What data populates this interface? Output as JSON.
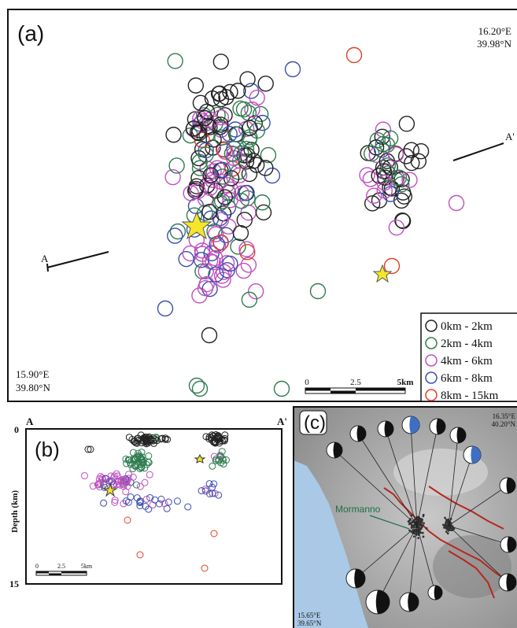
{
  "panel_a": {
    "label": "(a)",
    "ne_lon": "16.20°E",
    "ne_lat": "39.98°N",
    "sw_lon": "15.90°E",
    "sw_lat": "39.80°N",
    "section_start": "A",
    "section_end": "A'",
    "legend": [
      {
        "label": "0km  -  2km",
        "color": "#222222"
      },
      {
        "label": "2km  -  4km",
        "color": "#2e7d4f"
      },
      {
        "label": "4km  -  6km",
        "color": "#c04fc0"
      },
      {
        "label": "6km  -  8km",
        "color": "#3b4fb0"
      },
      {
        "label": "8km  -  15km",
        "color": "#e0402a"
      }
    ],
    "scale_bar": [
      "0",
      "2.5",
      "5km"
    ]
  },
  "panel_b": {
    "label": "(b)",
    "section_start": "A",
    "section_end": "A'",
    "y_axis_label": "Depth (km)",
    "y_top": "0",
    "y_bottom": "15",
    "scale_bar": [
      "0",
      "2.5",
      "5km"
    ]
  },
  "panel_c": {
    "label": "(c)",
    "ne_lon": "16.35°E",
    "ne_lat": "40.20°N",
    "sw_lon": "15.65°E",
    "sw_lat": "39.65°N",
    "town": "Mormanno"
  }
}
